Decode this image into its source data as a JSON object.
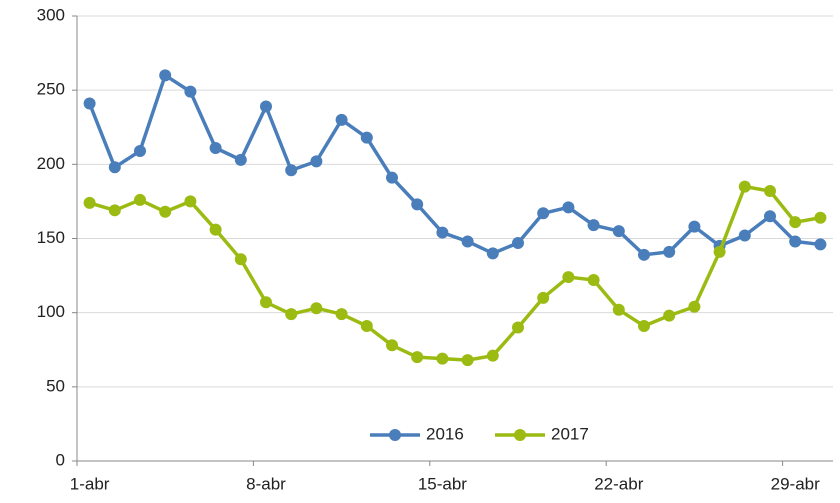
{
  "chart_data": {
    "type": "line",
    "categories": [
      "1-abr",
      null,
      null,
      null,
      null,
      null,
      null,
      "8-abr",
      null,
      null,
      null,
      null,
      null,
      null,
      "15-abr",
      null,
      null,
      null,
      null,
      null,
      null,
      "22-abr",
      null,
      null,
      null,
      null,
      null,
      null,
      "29-abr",
      null
    ],
    "series": [
      {
        "name": "2016",
        "color": "#4a7ebb",
        "values": [
          241,
          198,
          209,
          260,
          249,
          211,
          203,
          239,
          196,
          202,
          230,
          218,
          191,
          173,
          154,
          148,
          140,
          147,
          167,
          171,
          159,
          155,
          139,
          141,
          158,
          145,
          152,
          165,
          148,
          146
        ]
      },
      {
        "name": "2017",
        "color": "#9bbb13",
        "values": [
          174,
          169,
          176,
          168,
          175,
          156,
          136,
          107,
          99,
          103,
          99,
          91,
          78,
          70,
          69,
          68,
          71,
          90,
          110,
          124,
          122,
          102,
          91,
          98,
          104,
          141,
          185,
          182,
          161,
          164
        ]
      }
    ],
    "ylim": [
      0,
      300
    ],
    "yticks": [
      0,
      50,
      100,
      150,
      200,
      250,
      300
    ],
    "grid": true,
    "legend": "bottom"
  }
}
